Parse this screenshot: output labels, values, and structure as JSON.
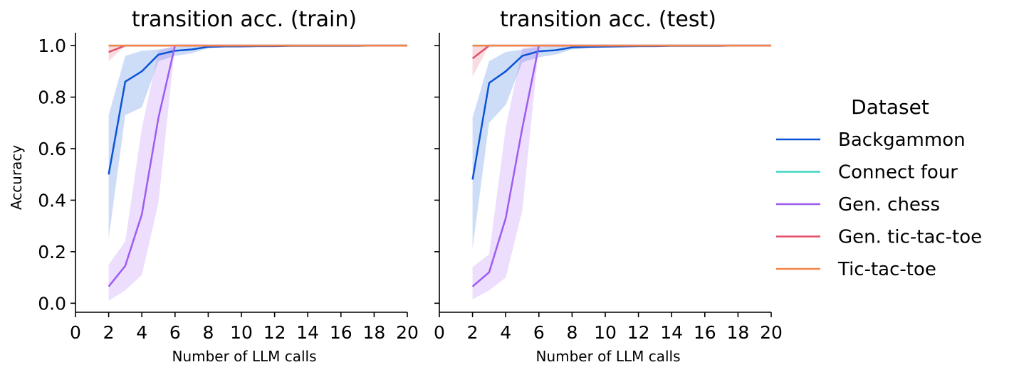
{
  "legend": {
    "title": "Dataset",
    "placement": "right",
    "entries": [
      {
        "name": "Backgammon",
        "color": "#0b53d6"
      },
      {
        "name": "Connect four",
        "color": "#3fd6c4"
      },
      {
        "name": "Gen. chess",
        "color": "#9e5cf0"
      },
      {
        "name": "Gen. tic-tac-toe",
        "color": "#e3506a"
      },
      {
        "name": "Tic-tac-toe",
        "color": "#f58447"
      }
    ]
  },
  "chart_data": [
    {
      "type": "line",
      "title": "transition acc. (train)",
      "xlabel": "Number of LLM calls",
      "ylabel": "Accuracy",
      "xlim": [
        0,
        20
      ],
      "ylim": [
        -0.035,
        1.05
      ],
      "xticks": [
        "0",
        "2",
        "4",
        "6",
        "8",
        "10",
        "12",
        "14",
        "16",
        "18",
        "20"
      ],
      "yticks": [
        "0.0",
        "0.2",
        "0.4",
        "0.6",
        "0.8",
        "1.0"
      ],
      "grid": false,
      "series": [
        {
          "name": "Backgammon",
          "color": "#0b53d6",
          "x": [
            2,
            3,
            4,
            5,
            6,
            7,
            8,
            9,
            10,
            11,
            12,
            13,
            14,
            15,
            16,
            17,
            18,
            19,
            20
          ],
          "y": [
            0.5,
            0.86,
            0.9,
            0.965,
            0.98,
            0.985,
            0.995,
            0.997,
            0.997,
            0.998,
            0.998,
            0.999,
            0.999,
            0.999,
            0.999,
            0.999,
            1.0,
            1.0,
            1.0
          ],
          "lower": [
            0.25,
            0.73,
            0.76,
            0.94,
            0.96,
            0.97,
            0.99,
            0.993,
            0.994,
            0.995,
            0.996,
            0.997,
            0.997,
            0.998,
            0.998,
            0.998,
            1.0,
            1.0,
            1.0
          ],
          "upper": [
            0.73,
            0.96,
            0.98,
            0.985,
            0.995,
            0.997,
            0.999,
            1.0,
            1.0,
            1.0,
            1.0,
            1.0,
            1.0,
            1.0,
            1.0,
            1.0,
            1.0,
            1.0,
            1.0
          ]
        },
        {
          "name": "Connect four",
          "color": "#3fd6c4",
          "x": [
            2,
            3,
            4,
            5,
            6,
            7,
            8,
            9,
            10,
            11,
            12,
            13,
            14,
            15,
            16,
            17,
            18,
            19,
            20
          ],
          "y": [
            1.0,
            1.0,
            1.0,
            1.0,
            1.0,
            1.0,
            1.0,
            1.0,
            1.0,
            1.0,
            1.0,
            1.0,
            1.0,
            1.0,
            1.0,
            1.0,
            1.0,
            1.0,
            1.0
          ],
          "lower": null,
          "upper": null
        },
        {
          "name": "Gen. chess",
          "color": "#9e5cf0",
          "x": [
            2,
            3,
            4,
            5,
            6,
            7,
            8,
            9,
            10,
            11,
            12,
            13,
            14,
            15,
            16,
            17,
            18,
            19,
            20
          ],
          "y": [
            0.065,
            0.145,
            0.345,
            0.72,
            1.0,
            1.0,
            1.0,
            1.0,
            1.0,
            1.0,
            1.0,
            1.0,
            1.0,
            1.0,
            1.0,
            1.0,
            1.0,
            1.0,
            1.0
          ],
          "lower": [
            0.01,
            0.05,
            0.11,
            0.39,
            1.0,
            1.0,
            1.0,
            1.0,
            1.0,
            1.0,
            1.0,
            1.0,
            1.0,
            1.0,
            1.0,
            1.0,
            1.0,
            1.0,
            1.0
          ],
          "upper": [
            0.15,
            0.24,
            0.68,
            0.98,
            1.0,
            1.0,
            1.0,
            1.0,
            1.0,
            1.0,
            1.0,
            1.0,
            1.0,
            1.0,
            1.0,
            1.0,
            1.0,
            1.0,
            1.0
          ]
        },
        {
          "name": "Gen. tic-tac-toe",
          "color": "#e3506a",
          "x": [
            2,
            3,
            4,
            5,
            6,
            7,
            8,
            9,
            10,
            11,
            12,
            13,
            14,
            15,
            16,
            17,
            18,
            19,
            20
          ],
          "y": [
            0.975,
            1.0,
            1.0,
            1.0,
            1.0,
            1.0,
            1.0,
            1.0,
            1.0,
            1.0,
            1.0,
            1.0,
            1.0,
            1.0,
            1.0,
            1.0,
            1.0,
            1.0,
            1.0
          ],
          "lower": [
            0.94,
            1.0,
            1.0,
            1.0,
            1.0,
            1.0,
            1.0,
            1.0,
            1.0,
            1.0,
            1.0,
            1.0,
            1.0,
            1.0,
            1.0,
            1.0,
            1.0,
            1.0,
            1.0
          ],
          "upper": [
            1.0,
            1.0,
            1.0,
            1.0,
            1.0,
            1.0,
            1.0,
            1.0,
            1.0,
            1.0,
            1.0,
            1.0,
            1.0,
            1.0,
            1.0,
            1.0,
            1.0,
            1.0,
            1.0
          ]
        },
        {
          "name": "Tic-tac-toe",
          "color": "#f58447",
          "x": [
            2,
            3,
            4,
            5,
            6,
            7,
            8,
            9,
            10,
            11,
            12,
            13,
            14,
            15,
            16,
            17,
            18,
            19,
            20
          ],
          "y": [
            1.0,
            1.0,
            1.0,
            1.0,
            1.0,
            1.0,
            1.0,
            1.0,
            1.0,
            1.0,
            1.0,
            1.0,
            1.0,
            1.0,
            1.0,
            1.0,
            1.0,
            1.0,
            1.0
          ],
          "lower": null,
          "upper": null
        }
      ]
    },
    {
      "type": "line",
      "title": "transition acc. (test)",
      "xlabel": "Number of LLM calls",
      "ylabel": "",
      "xlim": [
        0,
        20
      ],
      "ylim": [
        -0.035,
        1.05
      ],
      "xticks": [
        "0",
        "2",
        "4",
        "6",
        "8",
        "10",
        "12",
        "14",
        "16",
        "18",
        "20"
      ],
      "yticks": [],
      "grid": false,
      "series": [
        {
          "name": "Backgammon",
          "color": "#0b53d6",
          "x": [
            2,
            3,
            4,
            5,
            6,
            7,
            8,
            9,
            10,
            11,
            12,
            13,
            14,
            15,
            16,
            17,
            18,
            19,
            20
          ],
          "y": [
            0.48,
            0.855,
            0.9,
            0.96,
            0.978,
            0.982,
            0.993,
            0.995,
            0.996,
            0.997,
            0.998,
            0.998,
            0.999,
            0.999,
            0.999,
            0.999,
            1.0,
            1.0,
            1.0
          ],
          "lower": [
            0.21,
            0.7,
            0.77,
            0.935,
            0.955,
            0.965,
            0.985,
            0.99,
            0.992,
            0.994,
            0.995,
            0.996,
            0.997,
            0.998,
            0.998,
            0.998,
            1.0,
            1.0,
            1.0
          ],
          "upper": [
            0.72,
            0.94,
            0.975,
            0.985,
            0.995,
            0.997,
            0.999,
            1.0,
            1.0,
            1.0,
            1.0,
            1.0,
            1.0,
            1.0,
            1.0,
            1.0,
            1.0,
            1.0,
            1.0
          ]
        },
        {
          "name": "Connect four",
          "color": "#3fd6c4",
          "x": [
            2,
            3,
            4,
            5,
            6,
            7,
            8,
            9,
            10,
            11,
            12,
            13,
            14,
            15,
            16,
            17,
            18,
            19,
            20
          ],
          "y": [
            1.0,
            1.0,
            1.0,
            1.0,
            1.0,
            1.0,
            1.0,
            1.0,
            1.0,
            1.0,
            1.0,
            1.0,
            1.0,
            1.0,
            1.0,
            1.0,
            1.0,
            1.0,
            1.0
          ],
          "lower": null,
          "upper": null
        },
        {
          "name": "Gen. chess",
          "color": "#9e5cf0",
          "x": [
            2,
            3,
            4,
            5,
            6,
            7,
            8,
            9,
            10,
            11,
            12,
            13,
            14,
            15,
            16,
            17,
            18,
            19,
            20
          ],
          "y": [
            0.065,
            0.12,
            0.33,
            0.68,
            1.0,
            1.0,
            1.0,
            1.0,
            1.0,
            1.0,
            1.0,
            1.0,
            1.0,
            1.0,
            1.0,
            1.0,
            1.0,
            1.0,
            1.0
          ],
          "lower": [
            0.015,
            0.05,
            0.1,
            0.36,
            1.0,
            1.0,
            1.0,
            1.0,
            1.0,
            1.0,
            1.0,
            1.0,
            1.0,
            1.0,
            1.0,
            1.0,
            1.0,
            1.0,
            1.0
          ],
          "upper": [
            0.14,
            0.19,
            0.68,
            0.99,
            1.0,
            1.0,
            1.0,
            1.0,
            1.0,
            1.0,
            1.0,
            1.0,
            1.0,
            1.0,
            1.0,
            1.0,
            1.0,
            1.0,
            1.0
          ]
        },
        {
          "name": "Gen. tic-tac-toe",
          "color": "#e3506a",
          "x": [
            2,
            3,
            4,
            5,
            6,
            7,
            8,
            9,
            10,
            11,
            12,
            13,
            14,
            15,
            16,
            17,
            18,
            19,
            20
          ],
          "y": [
            0.95,
            1.0,
            1.0,
            1.0,
            1.0,
            1.0,
            1.0,
            1.0,
            1.0,
            1.0,
            1.0,
            1.0,
            1.0,
            1.0,
            1.0,
            1.0,
            1.0,
            1.0,
            1.0
          ],
          "lower": [
            0.88,
            1.0,
            1.0,
            1.0,
            1.0,
            1.0,
            1.0,
            1.0,
            1.0,
            1.0,
            1.0,
            1.0,
            1.0,
            1.0,
            1.0,
            1.0,
            1.0,
            1.0,
            1.0
          ],
          "upper": [
            1.0,
            1.0,
            1.0,
            1.0,
            1.0,
            1.0,
            1.0,
            1.0,
            1.0,
            1.0,
            1.0,
            1.0,
            1.0,
            1.0,
            1.0,
            1.0,
            1.0,
            1.0,
            1.0
          ]
        },
        {
          "name": "Tic-tac-toe",
          "color": "#f58447",
          "x": [
            2,
            3,
            4,
            5,
            6,
            7,
            8,
            9,
            10,
            11,
            12,
            13,
            14,
            15,
            16,
            17,
            18,
            19,
            20
          ],
          "y": [
            1.0,
            1.0,
            1.0,
            1.0,
            1.0,
            1.0,
            1.0,
            1.0,
            1.0,
            1.0,
            1.0,
            1.0,
            1.0,
            1.0,
            1.0,
            1.0,
            1.0,
            1.0,
            1.0
          ],
          "lower": null,
          "upper": null
        }
      ]
    }
  ]
}
